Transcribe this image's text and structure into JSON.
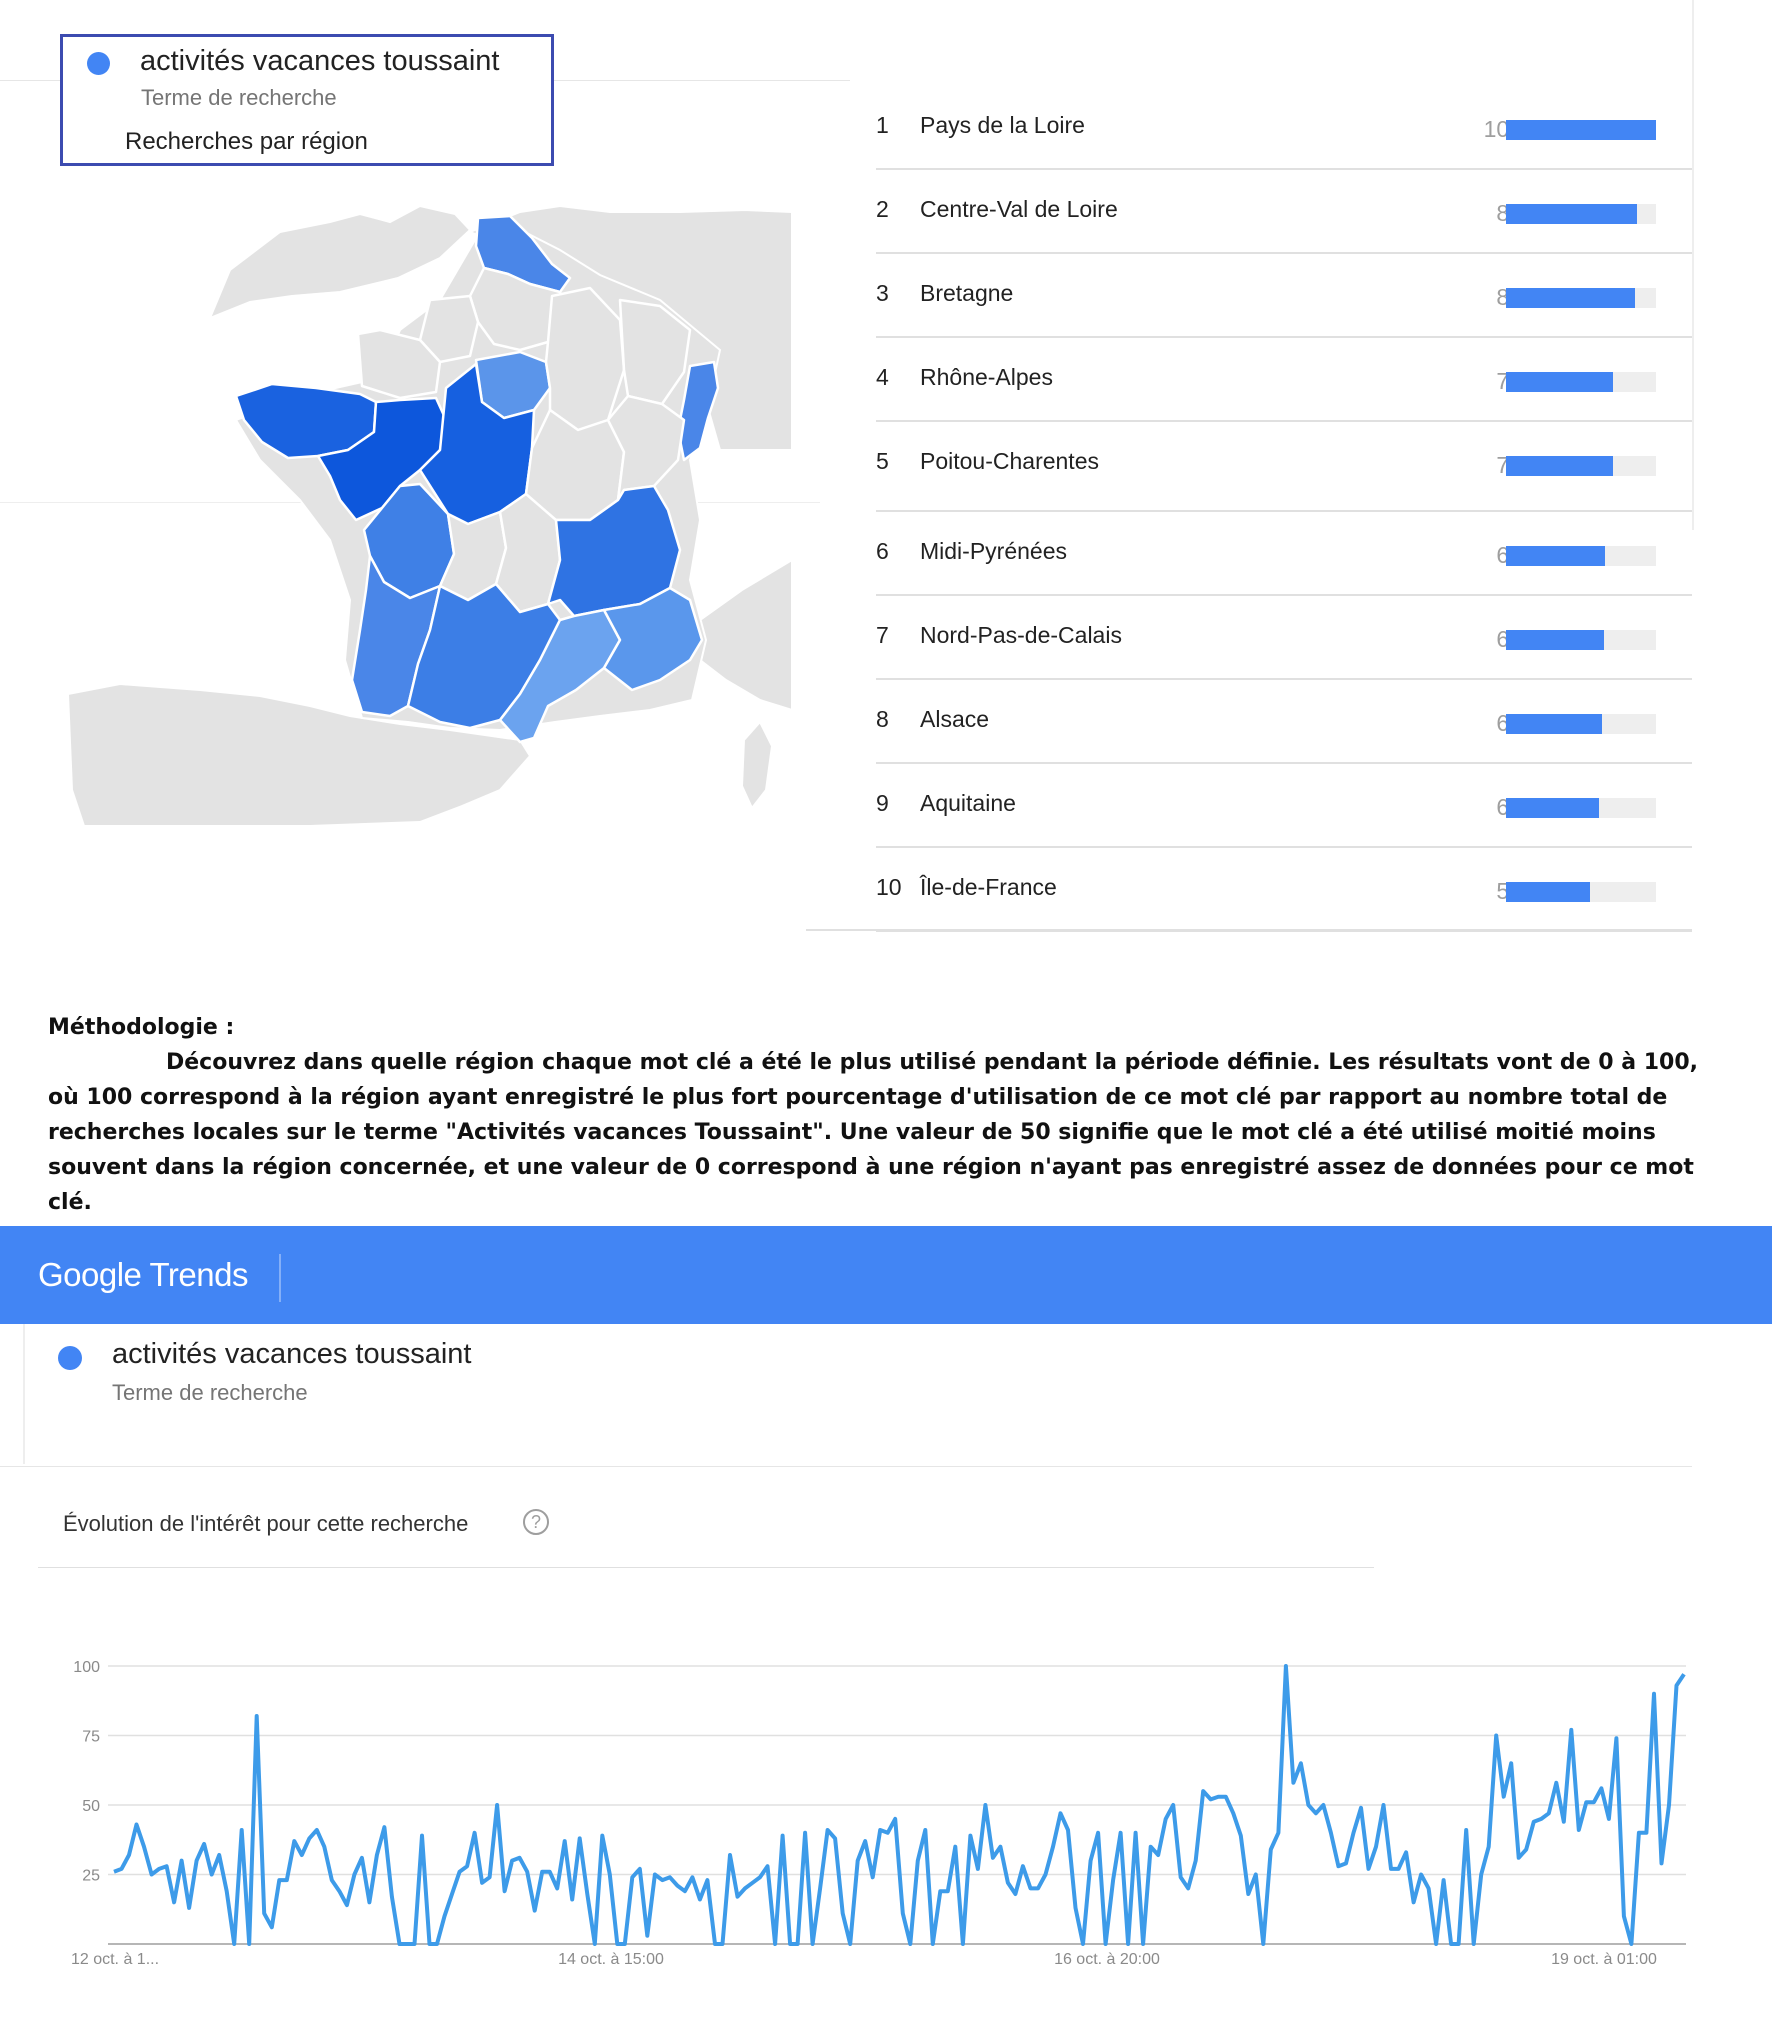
{
  "search_term": {
    "name": "activités vacances toussaint",
    "type": "Terme de recherche",
    "color": "#4285f4"
  },
  "region_panel": {
    "title": "Recherches par région",
    "map_icon": "france-regions-map"
  },
  "region_ranking": [
    {
      "rank": "1",
      "name": "Pays de la Loire",
      "value": 100
    },
    {
      "rank": "2",
      "name": "Centre-Val de Loire",
      "value": 87
    },
    {
      "rank": "3",
      "name": "Bretagne",
      "value": 86
    },
    {
      "rank": "4",
      "name": "Rhône-Alpes",
      "value": 71
    },
    {
      "rank": "5",
      "name": "Poitou-Charentes",
      "value": 71
    },
    {
      "rank": "6",
      "name": "Midi-Pyrénées",
      "value": 66
    },
    {
      "rank": "7",
      "name": "Nord-Pas-de-Calais",
      "value": 65
    },
    {
      "rank": "8",
      "name": "Alsace",
      "value": 64
    },
    {
      "rank": "9",
      "name": "Aquitaine",
      "value": 62
    },
    {
      "rank": "10",
      "name": "Île-de-France",
      "value": 56
    }
  ],
  "methodology": {
    "title": "Méthodologie :",
    "body": "Découvrez dans quelle région  chaque mot clé a été le plus utilisé pendant la période définie. Les résultats vont de 0 à 100, où 100 correspond à la région ayant enregistré le plus fort pourcentage d'utilisation de ce mot clé par rapport au nombre total de recherches locales sur le terme \"Activités vacances Toussaint\". Une valeur de 50 signifie que le mot clé a été utilisé moitié moins souvent dans la région concernée, et une valeur de 0 correspond à une région n'ayant pas enregistré assez de données pour ce mot clé."
  },
  "header": {
    "logo_text": "Google Trends",
    "bar_color": "#4285f4"
  },
  "interest_panel": {
    "title": "Évolution de l'intérêt pour cette recherche",
    "help_icon": "?"
  },
  "chart_data": [
    {
      "type": "bar",
      "title": "Recherches par région",
      "categories": [
        "Pays de la Loire",
        "Centre-Val de Loire",
        "Bretagne",
        "Rhône-Alpes",
        "Poitou-Charentes",
        "Midi-Pyrénées",
        "Nord-Pas-de-Calais",
        "Alsace",
        "Aquitaine",
        "Île-de-France"
      ],
      "values": [
        100,
        87,
        86,
        71,
        71,
        66,
        65,
        64,
        62,
        56
      ],
      "xlim": [
        0,
        100
      ],
      "color": "#4285f4"
    },
    {
      "type": "line",
      "title": "Évolution de l'intérêt pour cette recherche",
      "series": [
        {
          "name": "activités vacances toussaint",
          "values": [
            26,
            27,
            32,
            43,
            35,
            25,
            27,
            28,
            15,
            30,
            13,
            30,
            36,
            25,
            32,
            19,
            0,
            41,
            0,
            82,
            11,
            6,
            23,
            23,
            37,
            32,
            38,
            41,
            35,
            23,
            19,
            14,
            25,
            31,
            15,
            32,
            42,
            17,
            0,
            0,
            0,
            39,
            0,
            0,
            10,
            18,
            26,
            28,
            40,
            22,
            24,
            50,
            19,
            30,
            31,
            26,
            12,
            26,
            26,
            20,
            37,
            16,
            38,
            18,
            0,
            39,
            25,
            0,
            0,
            24,
            27,
            3,
            25,
            23,
            24,
            21,
            19,
            24,
            16,
            23,
            0,
            0,
            32,
            17,
            20,
            22,
            24,
            28,
            0,
            39,
            0,
            0,
            40,
            0,
            20,
            41,
            38,
            11,
            0,
            30,
            37,
            24,
            41,
            40,
            45,
            11,
            0,
            30,
            41,
            0,
            19,
            19,
            35,
            0,
            39,
            27,
            50,
            31,
            35,
            22,
            18,
            28,
            20,
            20,
            25,
            35,
            47,
            41,
            13,
            0,
            30,
            40,
            0,
            23,
            40,
            0,
            40,
            0,
            35,
            32,
            45,
            50,
            24,
            20,
            30,
            55,
            52,
            53,
            53,
            47,
            39,
            18,
            25,
            0,
            34,
            40,
            100,
            58,
            65,
            50,
            47,
            50,
            40,
            28,
            29,
            40,
            49,
            27,
            35,
            50,
            27,
            27,
            33,
            15,
            25,
            20,
            0,
            23,
            0,
            0,
            41,
            0,
            25,
            35,
            75,
            53,
            65,
            31,
            34,
            44,
            45,
            47,
            58,
            44,
            77,
            41,
            51,
            51,
            56,
            45,
            74,
            10,
            0,
            40,
            40,
            90,
            29,
            50,
            93,
            97
          ]
        }
      ],
      "x_tick_labels": [
        "12 oct. à 1...",
        "14 oct. à 15:00",
        "16 oct. à 20:00",
        "19 oct. à 01:00"
      ],
      "y_tick_labels": [
        "100",
        "75",
        "50",
        "25"
      ],
      "ylim": [
        0,
        100
      ],
      "grid": true,
      "color": "#3d9be9"
    }
  ]
}
